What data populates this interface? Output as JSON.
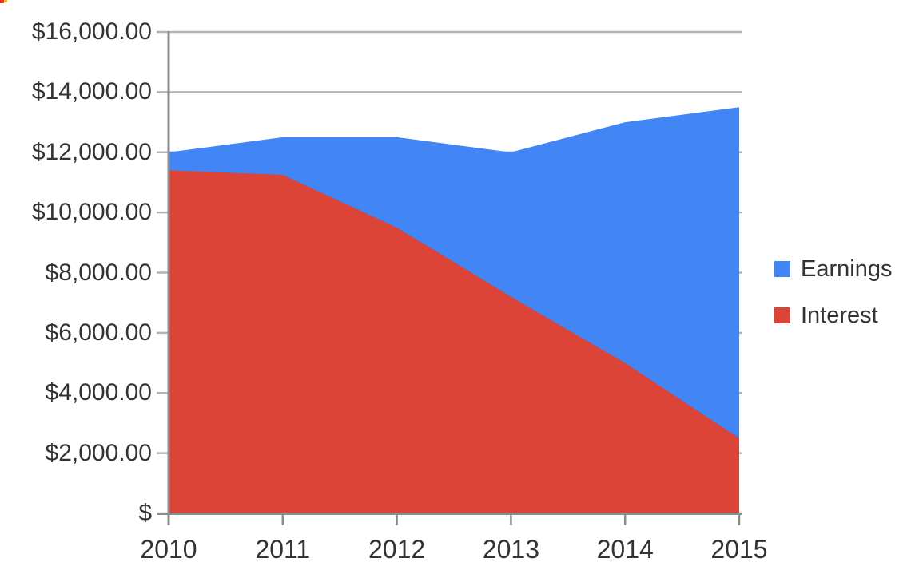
{
  "chart_data": {
    "type": "area",
    "stacked": true,
    "title": "",
    "xlabel": "",
    "ylabel": "",
    "categories": [
      "2010",
      "2011",
      "2012",
      "2013",
      "2014",
      "2015"
    ],
    "series": [
      {
        "name": "Earnings",
        "color": "#4285f4",
        "values": [
          600,
          1250,
          3000,
          4800,
          8000,
          11000
        ]
      },
      {
        "name": "Interest",
        "color": "#db4437",
        "values": [
          11400,
          11250,
          9500,
          7200,
          5000,
          2500
        ]
      }
    ],
    "stacked_totals": [
      12000,
      12500,
      12500,
      12000,
      13000,
      13500
    ],
    "y_axis": {
      "min": 0,
      "max": 16000,
      "tick_interval": 2000,
      "tick_labels_top_to_bottom": [
        "$16,000.00",
        "$14,000.00",
        "$12,000.00",
        "$10,000.00",
        "$8,000.00",
        "$6,000.00",
        "$4,000.00",
        "$2,000.00",
        "$"
      ]
    },
    "legend": {
      "position": "right"
    },
    "grid": true,
    "style": {
      "grid_color": "#b3b3b3",
      "axis_color": "#8c8c8c",
      "text_color": "#333333",
      "background": "#ffffff"
    }
  },
  "corner_marker": {
    "colors": [
      "#e8312a",
      "#fbbc04"
    ]
  }
}
